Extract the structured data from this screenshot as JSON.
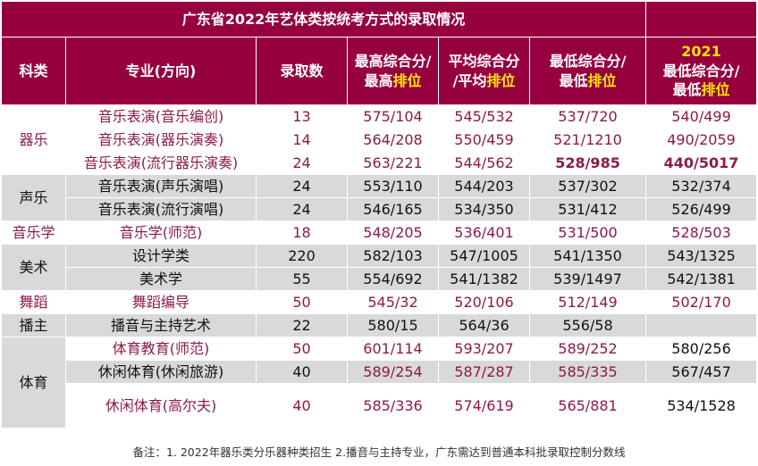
{
  "title": "广东省2022年艺体类按统考方式的录取情况",
  "headers": {
    "category": "科类",
    "major": "专业(方向)",
    "count": "录取数",
    "max_a": "最高综合分/",
    "max_b": "最高",
    "max_hl": "排位",
    "avg_a": "平均综合分",
    "avg_b": "/平均",
    "avg_hl": "排位",
    "min_a": "最低综合分/",
    "min_b": "最低",
    "min_hl": "排位",
    "y2021_year": "2021",
    "y2021_a": "最低综合分/",
    "y2021_b": "最低",
    "y2021_hl": "排位"
  },
  "categories": {
    "qiyue": "器乐",
    "shengyue": "声乐",
    "yinyuexue": "音乐学",
    "meishu": "美术",
    "wudao": "舞蹈",
    "bozhu": "播主",
    "tiyu": "体育"
  },
  "rows": [
    {
      "major": "音乐表演(音乐编创)",
      "count": "13",
      "max": "575/104",
      "avg": "545/532",
      "min": "537/720",
      "y2021": "540/499"
    },
    {
      "major": "音乐表演(器乐演奏)",
      "count": "14",
      "max": "564/208",
      "avg": "550/459",
      "min": "521/1210",
      "y2021": "490/2059"
    },
    {
      "major": "音乐表演(流行器乐演奏)",
      "count": "24",
      "max": "563/221",
      "avg": "544/562",
      "min": "528/985",
      "y2021": "440/5017"
    },
    {
      "major": "音乐表演(声乐演唱)",
      "count": "24",
      "max": "553/110",
      "avg": "544/203",
      "min": "537/302",
      "y2021": "532/374"
    },
    {
      "major": "音乐表演(流行演唱)",
      "count": "24",
      "max": "546/165",
      "avg": "534/350",
      "min": "531/412",
      "y2021": "526/499"
    },
    {
      "major": "音乐学(师范)",
      "count": "18",
      "max": "548/205",
      "avg": "536/401",
      "min": "531/500",
      "y2021": "528/503"
    },
    {
      "major": "设计学类",
      "count": "220",
      "max": "582/103",
      "avg": "547/1005",
      "min": "541/1350",
      "y2021": "543/1325"
    },
    {
      "major": "美术学",
      "count": "55",
      "max": "554/692",
      "avg": "541/1382",
      "min": "539/1497",
      "y2021": "542/1381"
    },
    {
      "major": "舞蹈编导",
      "count": "50",
      "max": "545/32",
      "avg": "520/106",
      "min": "512/149",
      "y2021": "502/170"
    },
    {
      "major": "播音与主持艺术",
      "count": "22",
      "max": "580/15",
      "avg": "564/36",
      "min": "556/58",
      "y2021": ""
    },
    {
      "major": "体育教育(师范)",
      "count": "50",
      "max": "601/114",
      "avg": "593/207",
      "min": "589/252",
      "y2021": "580/256"
    },
    {
      "major": "休闲体育(休闲旅游)",
      "count": "40",
      "max": "589/254",
      "avg": "587/287",
      "min": "585/335",
      "y2021": "567/457"
    },
    {
      "major": "休闲体育(高尔夫)",
      "count": "40",
      "max": "585/336",
      "avg": "574/619",
      "min": "565/881",
      "y2021": "534/1528"
    }
  ],
  "note": "备注：1. 2022年器乐类分乐器种类招生  2.播音与主持专业，广东需达到普通本科批录取控制分数线",
  "colors": {
    "header_bg": "#96003f",
    "highlight": "#ffe600",
    "row_gray": "#d9d9d9",
    "text_pink": "#8b1a4a"
  }
}
